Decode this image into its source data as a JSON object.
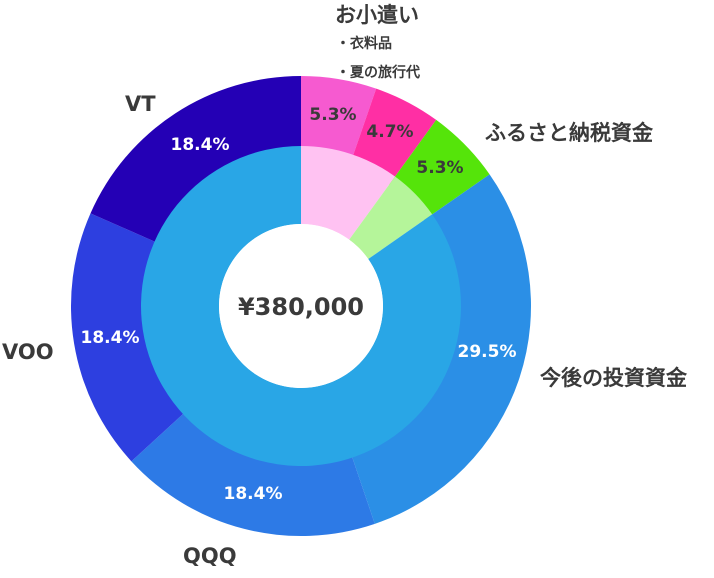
{
  "chart_data": {
    "type": "pie",
    "center_label": "¥380,000",
    "outer_ring": [
      {
        "name": "お小遣い",
        "value": 5.3,
        "label": "5.3%",
        "color": "#f65ad0"
      },
      {
        "name": "",
        "value": 4.7,
        "label": "4.7%",
        "color": "#ff2fa4"
      },
      {
        "name": "ふるさと納税資金",
        "value": 5.3,
        "label": "5.3%",
        "color": "#55e40a"
      },
      {
        "name": "今後の投資資金",
        "value": 29.5,
        "label": "29.5%",
        "color": "#2b8fe6"
      },
      {
        "name": "QQQ",
        "value": 18.4,
        "label": "18.4%",
        "color": "#2d7ae6"
      },
      {
        "name": "VOO",
        "value": 18.4,
        "label": "18.4%",
        "color": "#2d3fe0"
      },
      {
        "name": "VT",
        "value": 18.4,
        "label": "18.4%",
        "color": "#2400b5"
      }
    ],
    "inner_ring": [
      {
        "value": 10.0,
        "color": "#ffc2f2"
      },
      {
        "value": 5.3,
        "color": "#b5f59a"
      },
      {
        "value": 84.7,
        "color": "#29a6e6"
      }
    ],
    "sub_items": [
      "衣料品",
      "夏の旅行代"
    ],
    "bullet": "・"
  }
}
